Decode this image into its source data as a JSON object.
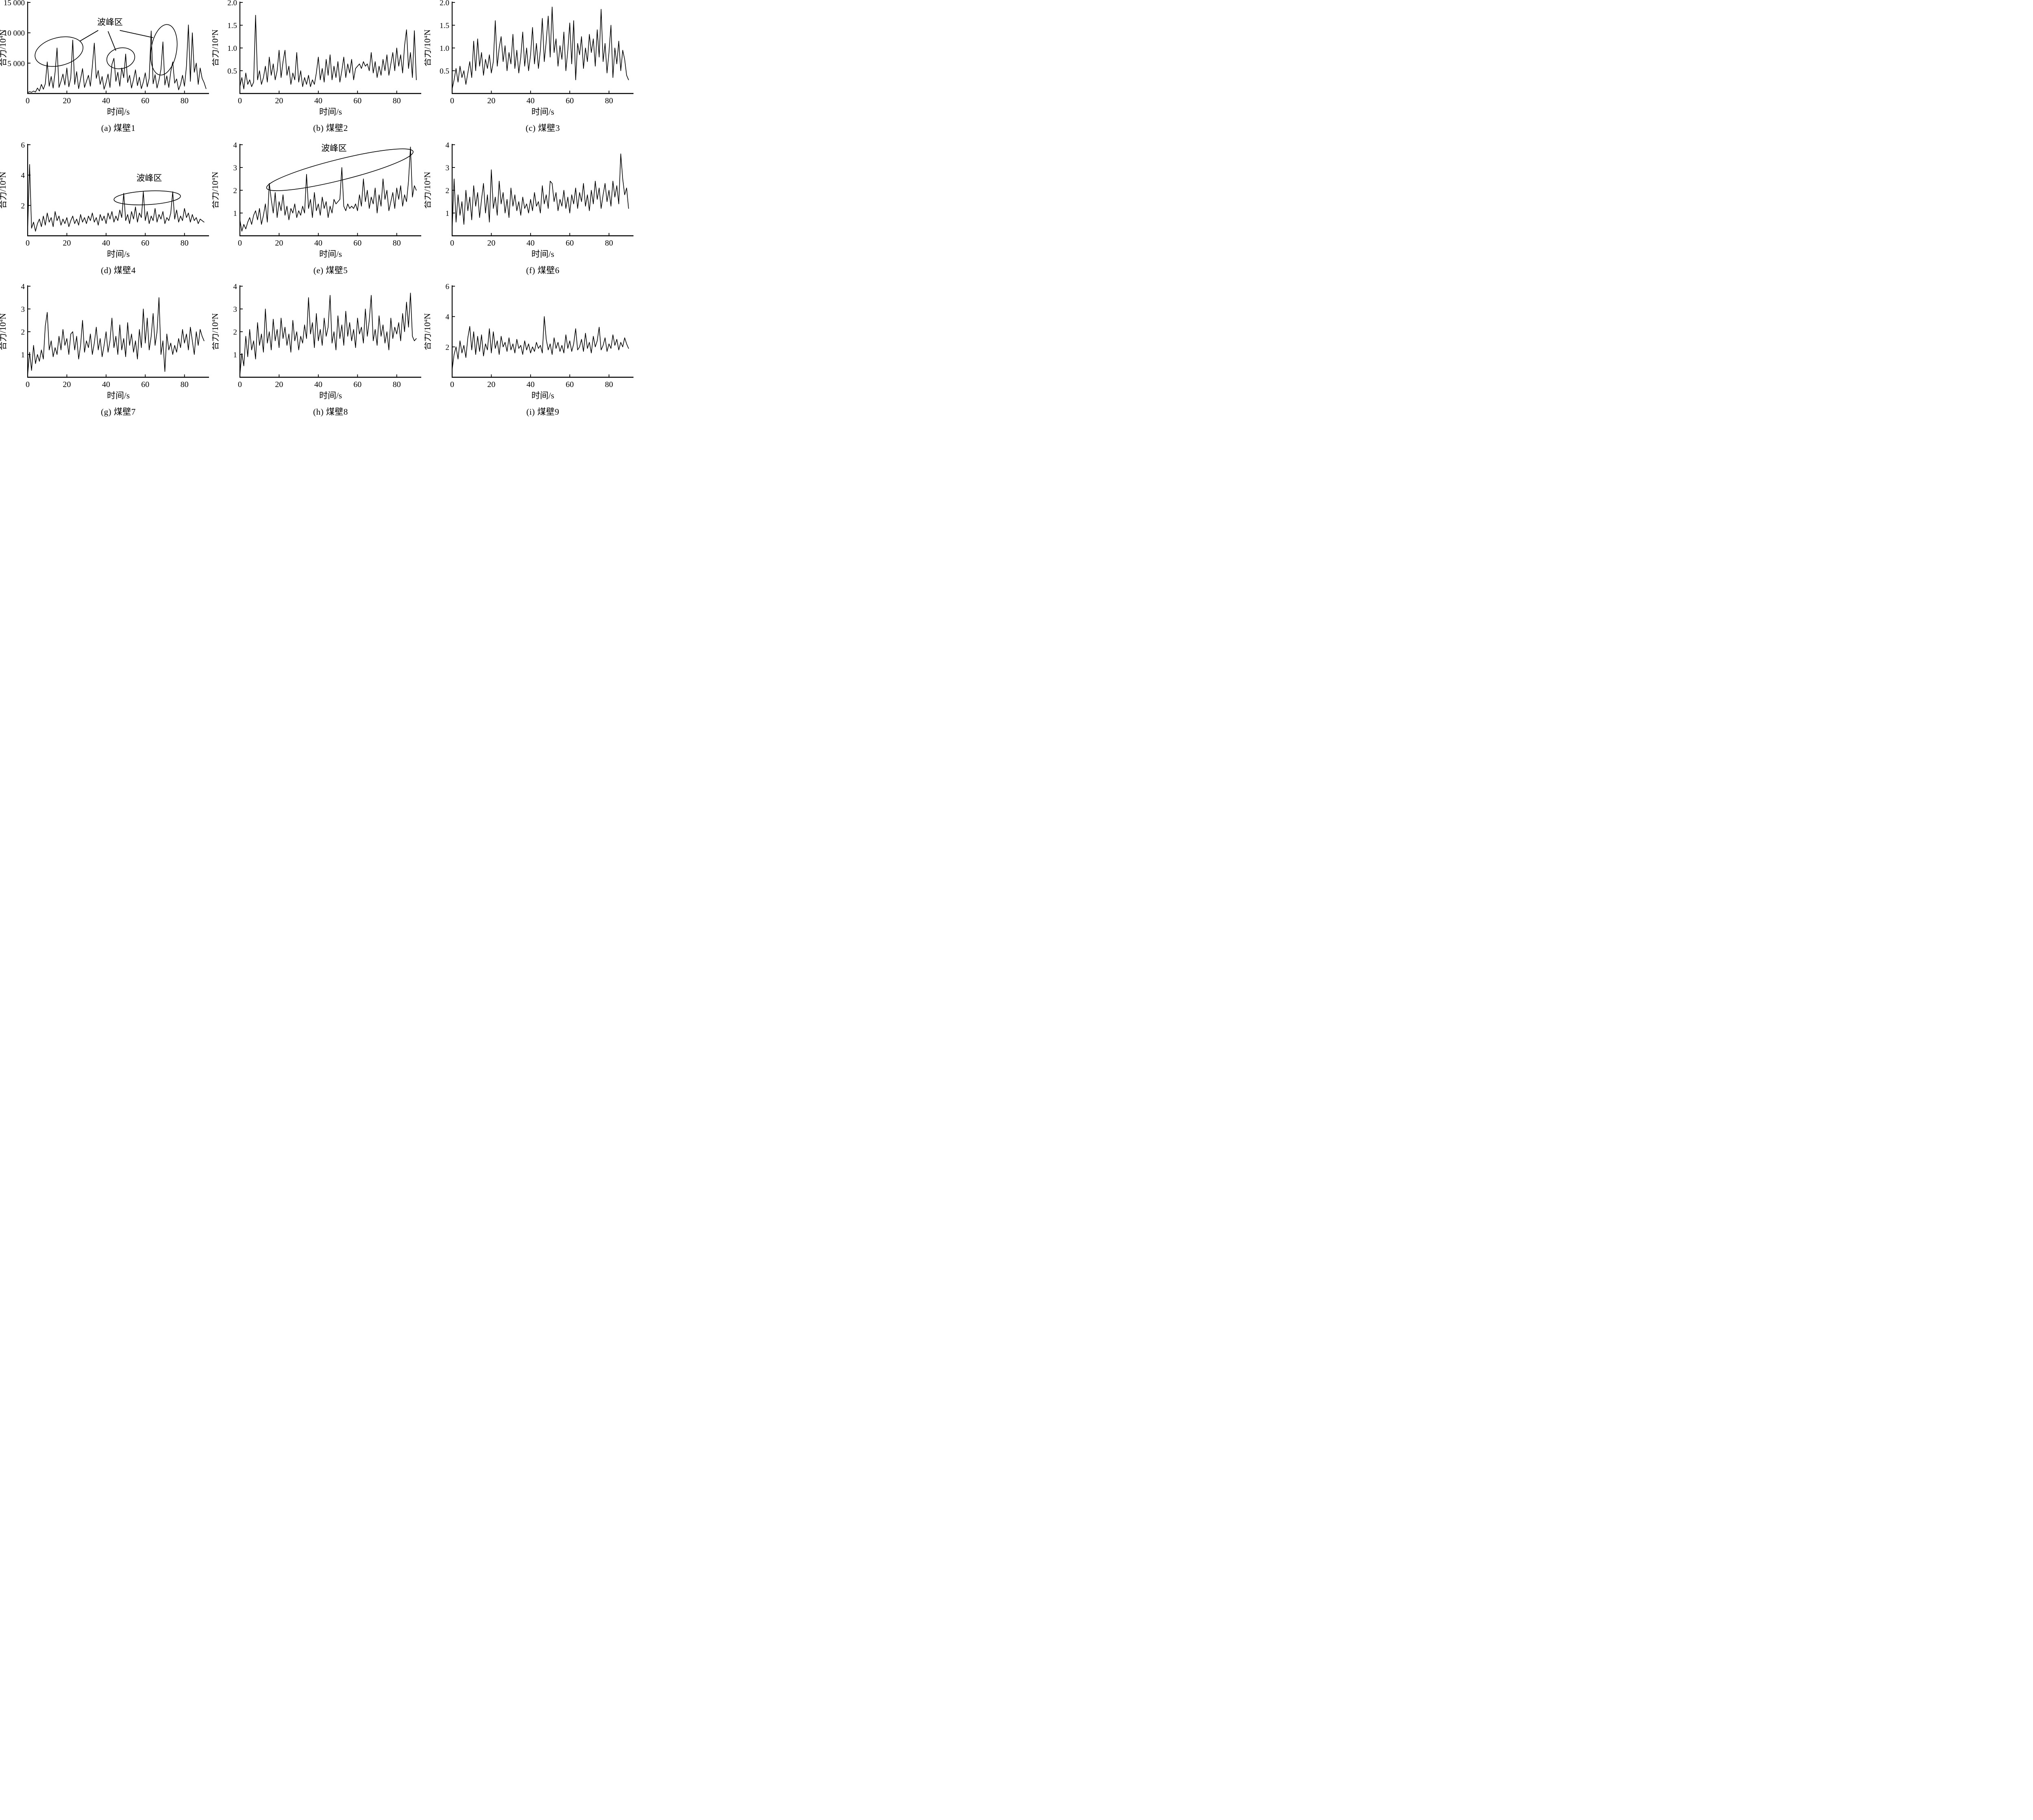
{
  "chart_data": {
    "type": "line",
    "title": "",
    "xlabel": "时间/s",
    "ylabel": "合力/10⁴N",
    "ylabel_parts": {
      "base": "合力/10",
      "sup": "4",
      "unit": "N"
    },
    "x_range": [
      0,
      92.5
    ],
    "x_ticks": [
      0,
      20,
      40,
      60,
      80
    ],
    "x_start": 0,
    "x_step": 1,
    "grid": false,
    "legend": "none",
    "line_color": "#000000",
    "axis_color": "#000000",
    "background_color": "#ffffff",
    "annotation_label": "波峰区",
    "charts": [
      {
        "id": "a",
        "caption": "(a) 煤壁1",
        "ylim": [
          0,
          15000
        ],
        "y_ticks": [
          {
            "v": 5000,
            "label": "5 000"
          },
          {
            "v": 10000,
            "label": "10 000"
          },
          {
            "v": 15000,
            "label": "15 000"
          }
        ],
        "origin_label": "0",
        "values": [
          150,
          300,
          200,
          400,
          250,
          900,
          400,
          1500,
          700,
          1600,
          5200,
          1200,
          2800,
          900,
          3500,
          7500,
          1000,
          2000,
          3200,
          1400,
          4200,
          1100,
          2600,
          8800,
          1500,
          3600,
          800,
          2400,
          4100,
          1000,
          2000,
          3000,
          1200,
          4500,
          8300,
          2500,
          3800,
          1500,
          2800,
          700,
          1800,
          3200,
          1000,
          4800,
          5800,
          2000,
          3500,
          1200,
          4200,
          2600,
          6500,
          1800,
          3000,
          900,
          2300,
          3900,
          1300,
          2700,
          800,
          1900,
          3400,
          1100,
          2500,
          10300,
          1600,
          3100,
          900,
          2200,
          4000,
          8500,
          1400,
          2900,
          1000,
          3600,
          5200,
          1700,
          2400,
          600,
          1500,
          3000,
          1200,
          4500,
          11300,
          2000,
          10000,
          3500,
          5000,
          1500,
          4200,
          2500,
          1800,
          800
        ],
        "annotation": {
          "label": "波峰区",
          "label_at": [
            42,
            11300
          ],
          "connectors": [
            [
              36,
              10400,
              26.5,
              8600
            ],
            [
              41,
              10250,
              45,
              7050
            ],
            [
              47,
              10400,
              64,
              9200
            ]
          ],
          "ellipses": [
            {
              "cx": 16,
              "cy": 6900,
              "rx": 12.5,
              "ry": 2300,
              "rot": -14
            },
            {
              "cx": 47.5,
              "cy": 5800,
              "rx": 7.2,
              "ry": 1700,
              "rot": -12
            },
            {
              "cx": 69.5,
              "cy": 7200,
              "rx": 6.5,
              "ry": 4200,
              "rot": 9
            }
          ]
        }
      },
      {
        "id": "b",
        "caption": "(b) 煤壁2",
        "ylim": [
          0,
          2.0
        ],
        "y_ticks": [
          {
            "v": 0.5,
            "label": "0.5"
          },
          {
            "v": 1.0,
            "label": "1.0"
          },
          {
            "v": 1.5,
            "label": "1.5"
          },
          {
            "v": 2.0,
            "label": "2.0"
          }
        ],
        "origin_label": "0",
        "values": [
          0.15,
          0.35,
          0.1,
          0.45,
          0.2,
          0.3,
          0.15,
          0.25,
          1.72,
          0.3,
          0.5,
          0.2,
          0.35,
          0.6,
          0.25,
          0.8,
          0.4,
          0.65,
          0.3,
          0.5,
          0.95,
          0.35,
          0.7,
          0.95,
          0.4,
          0.6,
          0.2,
          0.45,
          0.3,
          0.9,
          0.25,
          0.5,
          0.15,
          0.35,
          0.2,
          0.4,
          0.15,
          0.3,
          0.2,
          0.45,
          0.8,
          0.3,
          0.55,
          0.25,
          0.75,
          0.4,
          0.85,
          0.3,
          0.6,
          0.35,
          0.7,
          0.25,
          0.5,
          0.8,
          0.35,
          0.65,
          0.45,
          0.75,
          0.3,
          0.55,
          0.6,
          0.65,
          0.55,
          0.7,
          0.6,
          0.65,
          0.5,
          0.9,
          0.45,
          0.7,
          0.35,
          0.6,
          0.4,
          0.75,
          0.5,
          0.85,
          0.4,
          0.65,
          0.9,
          0.5,
          1.0,
          0.6,
          0.85,
          0.45,
          1.05,
          1.4,
          0.55,
          0.9,
          0.35,
          1.38,
          0.3
        ],
        "annotation": null
      },
      {
        "id": "c",
        "caption": "(c) 煤壁3",
        "ylim": [
          0,
          2.0
        ],
        "y_ticks": [
          {
            "v": 0.5,
            "label": "0.5"
          },
          {
            "v": 1.0,
            "label": "1.0"
          },
          {
            "v": 1.5,
            "label": "1.5"
          },
          {
            "v": 2.0,
            "label": "2.0"
          }
        ],
        "origin_label": "0",
        "values": [
          0.1,
          0.3,
          0.55,
          0.25,
          0.6,
          0.35,
          0.5,
          0.2,
          0.45,
          0.7,
          0.35,
          1.15,
          0.5,
          1.2,
          0.6,
          0.9,
          0.4,
          0.75,
          0.55,
          0.85,
          0.45,
          0.7,
          1.6,
          0.6,
          1.0,
          1.25,
          0.7,
          1.05,
          0.5,
          0.9,
          0.65,
          1.3,
          0.55,
          0.95,
          0.45,
          0.8,
          1.35,
          0.6,
          1.0,
          0.5,
          0.85,
          1.45,
          0.65,
          1.1,
          0.55,
          0.95,
          1.65,
          0.7,
          1.15,
          1.7,
          0.8,
          1.9,
          0.9,
          1.2,
          0.6,
          1.05,
          0.75,
          1.35,
          0.5,
          0.95,
          1.55,
          0.65,
          1.6,
          0.3,
          1.1,
          0.85,
          1.25,
          0.55,
          1.0,
          0.7,
          1.3,
          0.9,
          1.2,
          0.6,
          1.4,
          0.8,
          1.85,
          0.7,
          1.1,
          0.45,
          0.9,
          1.5,
          0.35,
          1.0,
          0.65,
          1.15,
          0.5,
          0.95,
          0.75,
          0.4,
          0.3
        ],
        "annotation": null
      },
      {
        "id": "d",
        "caption": "(d) 煤壁4",
        "ylim": [
          0,
          6
        ],
        "y_ticks": [
          {
            "v": 2,
            "label": "2"
          },
          {
            "v": 4,
            "label": "4"
          },
          {
            "v": 6,
            "label": "6"
          }
        ],
        "origin_label": "0",
        "values": [
          0.4,
          4.7,
          0.5,
          0.9,
          0.3,
          0.8,
          1.1,
          0.6,
          1.3,
          0.7,
          1.5,
          0.9,
          1.2,
          0.6,
          1.6,
          1.0,
          1.3,
          0.7,
          1.1,
          0.8,
          1.2,
          0.6,
          1.0,
          1.3,
          0.8,
          1.1,
          0.7,
          1.4,
          0.9,
          1.2,
          0.8,
          1.3,
          1.0,
          1.5,
          0.9,
          1.2,
          0.7,
          1.4,
          1.0,
          1.3,
          0.8,
          1.5,
          1.1,
          1.6,
          0.9,
          1.3,
          1.0,
          1.7,
          1.2,
          2.8,
          1.0,
          1.4,
          0.8,
          1.6,
          1.1,
          1.9,
          0.9,
          1.5,
          1.2,
          2.9,
          1.0,
          1.6,
          0.8,
          1.3,
          1.0,
          1.8,
          0.9,
          1.4,
          1.1,
          1.6,
          0.8,
          1.2,
          1.0,
          1.5,
          2.9,
          1.1,
          1.7,
          0.9,
          1.3,
          1.0,
          1.8,
          1.2,
          1.5,
          0.9,
          1.4,
          1.0,
          1.2,
          0.8,
          1.1,
          1.0,
          0.9
        ],
        "annotation": {
          "label": "波峰区",
          "label_at": [
            62,
            3.62
          ],
          "connectors": [],
          "ellipses": [
            {
              "cx": 61,
              "cy": 2.5,
              "rx": 17,
              "ry": 0.45,
              "rot": -3
            }
          ]
        }
      },
      {
        "id": "e",
        "caption": "(e) 煤壁5",
        "ylim": [
          0,
          4
        ],
        "y_ticks": [
          {
            "v": 1,
            "label": "1"
          },
          {
            "v": 2,
            "label": "2"
          },
          {
            "v": 3,
            "label": "3"
          },
          {
            "v": 4,
            "label": "4"
          }
        ],
        "origin_label": "0",
        "values": [
          0.7,
          0.2,
          0.5,
          0.3,
          0.6,
          0.8,
          0.5,
          0.9,
          1.1,
          0.7,
          1.2,
          0.5,
          0.9,
          1.4,
          0.6,
          2.3,
          1.6,
          1.0,
          1.9,
          0.8,
          1.5,
          1.1,
          1.8,
          0.9,
          1.3,
          0.7,
          1.2,
          1.0,
          1.4,
          0.8,
          1.1,
          0.9,
          1.3,
          1.0,
          2.7,
          1.2,
          1.6,
          0.8,
          1.9,
          1.1,
          1.4,
          0.9,
          1.7,
          1.2,
          1.5,
          0.8,
          1.3,
          1.0,
          1.6,
          1.4,
          1.5,
          1.6,
          3.0,
          1.3,
          1.1,
          1.4,
          1.2,
          1.3,
          1.2,
          1.4,
          1.1,
          1.8,
          1.3,
          2.5,
          1.5,
          2.0,
          1.2,
          1.7,
          1.4,
          2.1,
          1.0,
          1.8,
          1.3,
          2.5,
          1.6,
          2.0,
          1.1,
          1.5,
          1.9,
          1.2,
          2.1,
          1.6,
          2.2,
          1.3,
          1.8,
          1.5,
          2.4,
          3.9,
          1.7,
          2.2,
          2.0
        ],
        "annotation": {
          "label": "波峰区",
          "label_at": [
            48,
            3.72
          ],
          "connectors": [],
          "ellipses": [
            {
              "cx": 51,
              "cy": 2.9,
              "rx": 38.5,
              "ry": 0.46,
              "rot": -14
            }
          ]
        }
      },
      {
        "id": "f",
        "caption": "(f) 煤壁6",
        "ylim": [
          0,
          4
        ],
        "y_ticks": [
          {
            "v": 1,
            "label": "1"
          },
          {
            "v": 2,
            "label": "2"
          },
          {
            "v": 3,
            "label": "3"
          },
          {
            "v": 4,
            "label": "4"
          }
        ],
        "origin_label": "0",
        "values": [
          0.3,
          2.5,
          0.6,
          1.8,
          0.9,
          1.5,
          0.5,
          2.0,
          1.1,
          1.7,
          0.7,
          2.2,
          1.3,
          1.9,
          0.8,
          1.6,
          2.3,
          1.0,
          1.8,
          0.6,
          2.9,
          1.2,
          1.7,
          0.9,
          2.4,
          1.4,
          1.9,
          1.0,
          1.6,
          0.8,
          2.1,
          1.3,
          1.8,
          1.1,
          1.5,
          0.9,
          1.7,
          1.2,
          1.4,
          1.0,
          1.6,
          1.1,
          1.9,
          1.3,
          1.5,
          1.0,
          2.2,
          1.4,
          1.8,
          1.2,
          2.4,
          2.3,
          1.5,
          1.9,
          1.1,
          1.6,
          1.3,
          2.0,
          1.2,
          1.7,
          1.0,
          1.8,
          1.4,
          2.1,
          1.2,
          1.9,
          1.5,
          2.3,
          1.3,
          1.8,
          1.1,
          2.0,
          1.4,
          2.4,
          1.6,
          2.1,
          1.2,
          1.8,
          2.3,
          1.5,
          2.0,
          1.3,
          2.4,
          1.7,
          2.2,
          1.4,
          3.6,
          2.5,
          1.8,
          2.1,
          1.2
        ],
        "annotation": null
      },
      {
        "id": "g",
        "caption": "(g) 煤壁7",
        "ylim": [
          0,
          4
        ],
        "y_ticks": [
          {
            "v": 1,
            "label": "1"
          },
          {
            "v": 2,
            "label": "2"
          },
          {
            "v": 3,
            "label": "3"
          },
          {
            "v": 4,
            "label": "4"
          }
        ],
        "origin_label": "0",
        "values": [
          0.1,
          1.1,
          0.3,
          1.4,
          0.6,
          1.0,
          0.7,
          1.2,
          0.8,
          2.25,
          2.85,
          1.2,
          1.6,
          0.9,
          1.3,
          1.0,
          1.8,
          1.2,
          2.1,
          1.4,
          1.7,
          1.0,
          1.9,
          2.0,
          1.2,
          1.8,
          0.8,
          1.4,
          2.5,
          1.1,
          1.6,
          1.3,
          1.9,
          1.0,
          1.5,
          2.2,
          1.2,
          1.7,
          0.9,
          1.4,
          2.0,
          1.1,
          1.6,
          2.6,
          1.3,
          1.8,
          1.0,
          2.3,
          1.2,
          1.7,
          0.9,
          2.4,
          1.4,
          1.9,
          1.1,
          1.6,
          0.8,
          2.1,
          1.3,
          3.0,
          1.5,
          2.6,
          1.2,
          1.8,
          2.8,
          1.4,
          2.0,
          3.5,
          1.0,
          1.6,
          0.25,
          1.9,
          1.2,
          1.5,
          1.0,
          1.4,
          1.1,
          1.7,
          1.3,
          2.1,
          1.5,
          1.9,
          1.2,
          2.2,
          1.6,
          1.0,
          2.0,
          1.4,
          2.1,
          1.8,
          1.6
        ],
        "annotation": null
      },
      {
        "id": "h",
        "caption": "(h) 煤壁8",
        "ylim": [
          0,
          4
        ],
        "y_ticks": [
          {
            "v": 1,
            "label": "1"
          },
          {
            "v": 2,
            "label": "2"
          },
          {
            "v": 3,
            "label": "3"
          },
          {
            "v": 4,
            "label": "4"
          }
        ],
        "origin_label": "0",
        "values": [
          0.1,
          1.05,
          0.5,
          1.8,
          0.9,
          2.1,
          1.2,
          1.6,
          0.8,
          2.4,
          1.4,
          1.9,
          1.1,
          3.0,
          1.5,
          2.0,
          1.2,
          2.55,
          1.6,
          2.1,
          1.3,
          2.6,
          1.7,
          2.2,
          1.4,
          1.9,
          1.1,
          2.5,
          1.6,
          2.0,
          1.2,
          1.8,
          1.5,
          2.3,
          1.7,
          3.5,
          1.9,
          2.4,
          1.3,
          2.8,
          1.6,
          2.1,
          1.4,
          2.6,
          1.8,
          2.2,
          3.6,
          1.5,
          2.0,
          1.2,
          2.7,
          1.7,
          2.3,
          1.4,
          2.9,
          1.8,
          2.4,
          1.6,
          2.1,
          1.3,
          2.6,
          1.9,
          2.2,
          1.5,
          3.0,
          1.8,
          2.5,
          3.6,
          1.6,
          2.1,
          1.4,
          2.7,
          1.8,
          2.3,
          1.5,
          2.0,
          1.2,
          2.6,
          1.7,
          2.2,
          1.9,
          2.4,
          1.6,
          2.8,
          2.0,
          3.3,
          2.2,
          3.7,
          1.8,
          1.6,
          1.7
        ],
        "annotation": null
      },
      {
        "id": "i",
        "caption": "(i) 煤壁9",
        "ylim": [
          0,
          6
        ],
        "y_ticks": [
          {
            "v": 2,
            "label": "2"
          },
          {
            "v": 4,
            "label": "4"
          },
          {
            "v": 6,
            "label": "6"
          }
        ],
        "origin_label": "0",
        "values": [
          0.5,
          1.5,
          2.0,
          1.2,
          2.4,
          1.6,
          2.1,
          1.3,
          2.6,
          3.35,
          1.8,
          3.0,
          1.5,
          2.7,
          1.7,
          2.8,
          1.4,
          2.2,
          1.8,
          3.2,
          1.6,
          3.0,
          1.9,
          2.4,
          1.5,
          2.7,
          2.0,
          2.3,
          1.7,
          2.6,
          1.8,
          2.2,
          1.6,
          2.5,
          1.9,
          2.1,
          1.5,
          2.4,
          1.8,
          2.2,
          1.6,
          2.0,
          1.7,
          2.3,
          1.9,
          2.1,
          1.6,
          4.0,
          2.5,
          1.8,
          2.2,
          1.5,
          2.6,
          1.9,
          2.3,
          1.7,
          2.1,
          1.6,
          2.8,
          1.9,
          2.4,
          1.7,
          2.2,
          3.2,
          1.8,
          2.0,
          2.5,
          1.7,
          2.9,
          1.9,
          2.3,
          1.6,
          2.7,
          2.0,
          2.4,
          3.3,
          1.8,
          2.1,
          2.6,
          1.7,
          2.2,
          1.9,
          2.8,
          2.1,
          2.5,
          1.8,
          2.3,
          2.0,
          2.6,
          2.2,
          1.9
        ],
        "annotation": null
      }
    ]
  }
}
